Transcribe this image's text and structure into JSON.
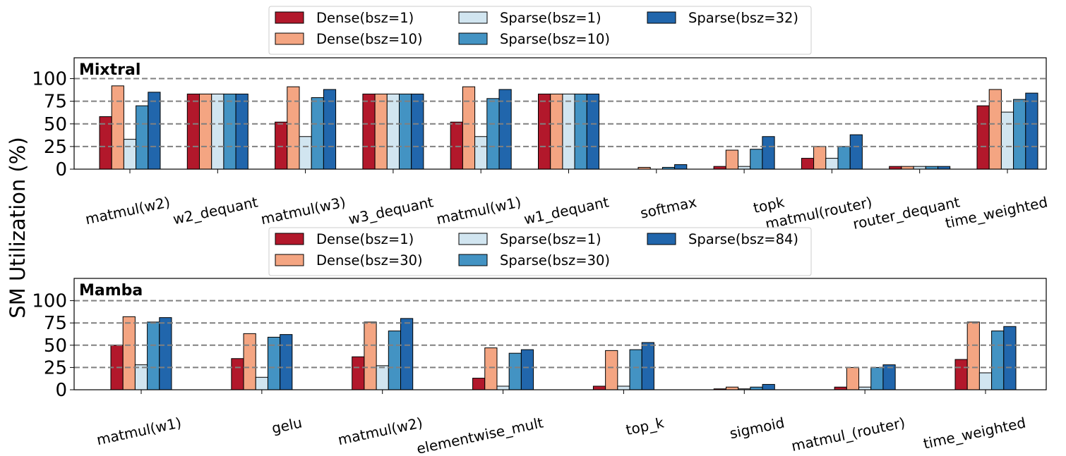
{
  "ylabel": "SM Utilization (%)",
  "colors": {
    "dense1": "#b2182b",
    "dense10": "#f4a582",
    "sparse1": "#d1e5f0",
    "sparse10": "#4393c3",
    "sparse32": "#2166ac",
    "grid": "#808080"
  },
  "chart_data": [
    {
      "type": "bar",
      "title": "Mixtral",
      "ylim": [
        0,
        123
      ],
      "yticks": [
        0,
        25,
        50,
        75,
        100
      ],
      "grid": "horizontal dashed at 25, 50, 75, 100",
      "legend_placement": "top-center",
      "categories": [
        "matmul(w2)",
        "w2_dequant",
        "matmul(w3)",
        "w3_dequant",
        "matmul(w1)",
        "w1_dequant",
        "softmax",
        "topk",
        "matmul(router)",
        "router_dequant",
        "time_weighted"
      ],
      "series": [
        {
          "name": "Dense(bsz=1)",
          "color": "#b2182b",
          "values": [
            58,
            83,
            52,
            83,
            52,
            83,
            0,
            3,
            12,
            3,
            70
          ]
        },
        {
          "name": "Dense(bsz=10)",
          "color": "#f4a582",
          "values": [
            92,
            83,
            91,
            83,
            91,
            83,
            2,
            21,
            25,
            3,
            88
          ]
        },
        {
          "name": "Sparse(bsz=1)",
          "color": "#d1e5f0",
          "values": [
            33,
            83,
            36,
            83,
            36,
            83,
            0,
            3,
            12,
            3,
            63
          ]
        },
        {
          "name": "Sparse(bsz=10)",
          "color": "#4393c3",
          "values": [
            70,
            83,
            79,
            83,
            78,
            83,
            2,
            22,
            25,
            3,
            77
          ]
        },
        {
          "name": "Sparse(bsz=32)",
          "color": "#2166ac",
          "values": [
            85,
            83,
            88,
            83,
            88,
            83,
            5,
            36,
            38,
            3,
            84
          ]
        }
      ]
    },
    {
      "type": "bar",
      "title": "Mamba",
      "ylim": [
        0,
        125
      ],
      "yticks": [
        0,
        25,
        50,
        75,
        100
      ],
      "grid": "horizontal dashed at 25, 50, 75, 100",
      "legend_placement": "top-center",
      "categories": [
        "matmul(w1)",
        "gelu",
        "matmul(w2)",
        "elementwise_mult",
        "top_k",
        "sigmoid",
        "matmul_(router)",
        "time_weighted"
      ],
      "series": [
        {
          "name": "Dense(bsz=1)",
          "color": "#b2182b",
          "values": [
            50,
            35,
            37,
            13,
            4,
            1,
            3,
            34
          ]
        },
        {
          "name": "Dense(bsz=30)",
          "color": "#f4a582",
          "values": [
            82,
            63,
            76,
            47,
            44,
            3,
            25,
            76
          ]
        },
        {
          "name": "Sparse(bsz=1)",
          "color": "#d1e5f0",
          "values": [
            28,
            14,
            27,
            4,
            4,
            1,
            3,
            19
          ]
        },
        {
          "name": "Sparse(bsz=30)",
          "color": "#4393c3",
          "values": [
            76,
            59,
            66,
            41,
            45,
            3,
            25,
            66
          ]
        },
        {
          "name": "Sparse(bsz=84)",
          "color": "#2166ac",
          "values": [
            81,
            62,
            80,
            45,
            53,
            6,
            28,
            71
          ]
        }
      ]
    }
  ]
}
